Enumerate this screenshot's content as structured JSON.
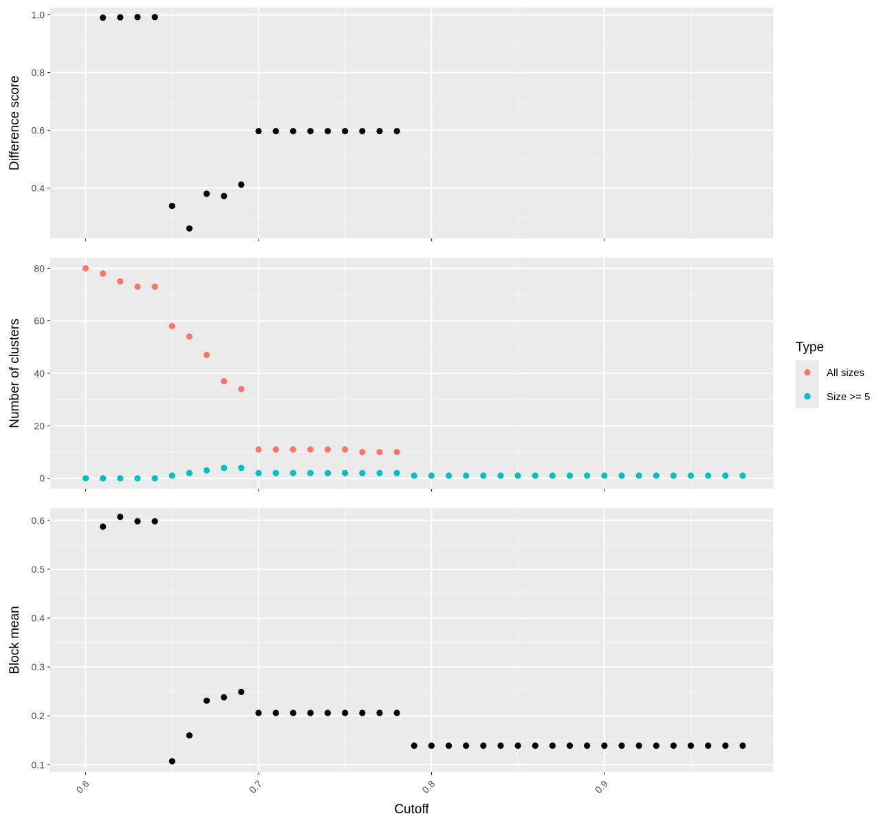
{
  "chart_data": {
    "type": "scatter",
    "xlabel": "Cutoff",
    "x_ticks": [
      0.6,
      0.7,
      0.8,
      0.9
    ],
    "x_tick_labels": [
      "0.6",
      "0.7",
      "0.8",
      "0.9"
    ],
    "xlim": [
      0.5795,
      0.9975
    ],
    "grid": true,
    "panels": [
      {
        "ylabel": "Difference score",
        "ylim": [
          0.225,
          1.025
        ],
        "y_ticks": [
          0.4,
          0.6,
          0.8,
          1.0
        ],
        "y_tick_labels": [
          "0.4",
          "0.6",
          "0.8",
          "1.0"
        ],
        "series": [
          {
            "color": "#000000",
            "x": [
              0.61,
              0.62,
              0.63,
              0.64,
              0.65,
              0.66,
              0.67,
              0.68,
              0.69,
              0.7,
              0.71,
              0.72,
              0.73,
              0.74,
              0.75,
              0.76,
              0.77,
              0.78
            ],
            "y": [
              0.99,
              0.991,
              0.992,
              0.992,
              0.338,
              0.26,
              0.38,
              0.372,
              0.412,
              0.597,
              0.597,
              0.597,
              0.597,
              0.597,
              0.597,
              0.597,
              0.597,
              0.597
            ]
          }
        ]
      },
      {
        "ylabel": "Number of clusters",
        "ylim": [
          -4,
          84
        ],
        "y_ticks": [
          0,
          20,
          40,
          60,
          80
        ],
        "y_tick_labels": [
          "0",
          "20",
          "40",
          "60",
          "80"
        ],
        "series": [
          {
            "name": "All sizes",
            "color": "#F8766D",
            "x": [
              0.6,
              0.61,
              0.62,
              0.63,
              0.64,
              0.65,
              0.66,
              0.67,
              0.68,
              0.69,
              0.7,
              0.71,
              0.72,
              0.73,
              0.74,
              0.75,
              0.76,
              0.77,
              0.78
            ],
            "y": [
              80,
              78,
              75,
              73,
              73,
              58,
              54,
              47,
              37,
              34,
              11,
              11,
              11,
              11,
              11,
              11,
              10,
              10,
              10
            ]
          },
          {
            "name": "Size >= 5",
            "color": "#00BFC4",
            "x": [
              0.6,
              0.61,
              0.62,
              0.63,
              0.64,
              0.65,
              0.66,
              0.67,
              0.68,
              0.69,
              0.7,
              0.71,
              0.72,
              0.73,
              0.74,
              0.75,
              0.76,
              0.77,
              0.78,
              0.79,
              0.8,
              0.81,
              0.82,
              0.83,
              0.84,
              0.85,
              0.86,
              0.87,
              0.88,
              0.89,
              0.9,
              0.91,
              0.92,
              0.93,
              0.94,
              0.95,
              0.96,
              0.97,
              0.98
            ],
            "y": [
              0,
              0,
              0,
              0,
              0,
              1,
              2,
              3,
              4,
              4,
              2,
              2,
              2,
              2,
              2,
              2,
              2,
              2,
              2,
              1,
              1,
              1,
              1,
              1,
              1,
              1,
              1,
              1,
              1,
              1,
              1,
              1,
              1,
              1,
              1,
              1,
              1,
              1,
              1
            ]
          }
        ]
      },
      {
        "ylabel": "Block mean",
        "ylim": [
          0.085,
          0.625
        ],
        "y_ticks": [
          0.1,
          0.2,
          0.3,
          0.4,
          0.5,
          0.6
        ],
        "y_tick_labels": [
          "0.1",
          "0.2",
          "0.3",
          "0.4",
          "0.5",
          "0.6"
        ],
        "series": [
          {
            "color": "#000000",
            "x": [
              0.61,
              0.62,
              0.63,
              0.64,
              0.65,
              0.66,
              0.67,
              0.68,
              0.69,
              0.7,
              0.71,
              0.72,
              0.73,
              0.74,
              0.75,
              0.76,
              0.77,
              0.78,
              0.79,
              0.8,
              0.81,
              0.82,
              0.83,
              0.84,
              0.85,
              0.86,
              0.87,
              0.88,
              0.89,
              0.9,
              0.91,
              0.92,
              0.93,
              0.94,
              0.95,
              0.96,
              0.97,
              0.98
            ],
            "y": [
              0.587,
              0.607,
              0.598,
              0.598,
              0.107,
              0.16,
              0.231,
              0.238,
              0.249,
              0.206,
              0.206,
              0.206,
              0.206,
              0.206,
              0.206,
              0.206,
              0.206,
              0.206,
              0.139,
              0.139,
              0.139,
              0.139,
              0.139,
              0.139,
              0.139,
              0.139,
              0.139,
              0.139,
              0.139,
              0.139,
              0.139,
              0.139,
              0.139,
              0.139,
              0.139,
              0.139,
              0.139,
              0.139
            ]
          }
        ]
      }
    ],
    "legend": {
      "title": "Type",
      "position": "right",
      "entries": [
        {
          "label": "All sizes",
          "color": "#F8766D"
        },
        {
          "label": "Size >= 5",
          "color": "#00BFC4"
        }
      ]
    }
  },
  "colors": {
    "panel_background": "#EBEBEB",
    "grid_major": "#FFFFFF",
    "grid_minor": "#F5F5F5"
  }
}
